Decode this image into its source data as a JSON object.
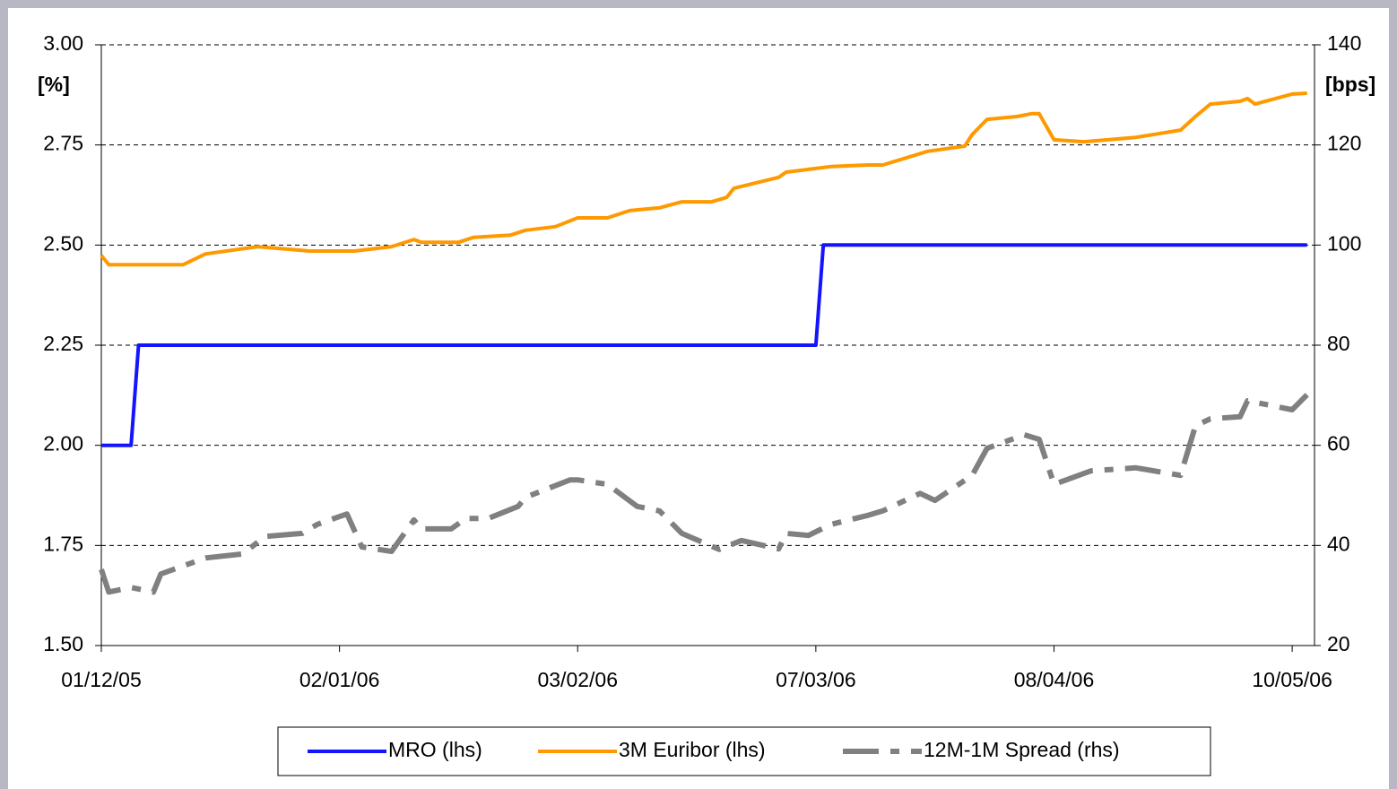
{
  "chart_data": {
    "type": "line",
    "y_label": "[%]",
    "y2_label": "[bps]",
    "xlim": [
      "01/12/05",
      "13/05/06"
    ],
    "xticks": [
      "01/12/05",
      "02/01/06",
      "03/02/06",
      "07/03/06",
      "08/04/06",
      "10/05/06"
    ],
    "ylim": [
      1.5,
      3.0
    ],
    "yticks": [
      {
        "value": 1.5,
        "label": "1.50"
      },
      {
        "value": 1.75,
        "label": "1.75"
      },
      {
        "value": 2.0,
        "label": "2.00"
      },
      {
        "value": 2.25,
        "label": "2.25"
      },
      {
        "value": 2.5,
        "label": "2.50"
      },
      {
        "value": 2.75,
        "label": "2.75"
      },
      {
        "value": 3.0,
        "label": "3.00"
      }
    ],
    "y2lim": [
      20,
      140
    ],
    "y2ticks": [
      20,
      40,
      60,
      80,
      100,
      120,
      140
    ],
    "grid": true,
    "legend": "bottom",
    "series": [
      {
        "name": "MRO (lhs)",
        "color": "#1414ff",
        "style": "solid",
        "x": [
          "01/12/05",
          "05/12/05",
          "06/12/05",
          "07/03/06",
          "08/03/06",
          "12/05/06"
        ],
        "values": [
          2.0,
          2.0,
          2.25,
          2.25,
          2.5,
          2.5
        ]
      },
      {
        "name": "3M Euribor (lhs)",
        "color": "#ff9900",
        "style": "solid",
        "x": [
          "01/12/05",
          "02/12/05",
          "12/12/05",
          "15/12/05",
          "22/12/05",
          "29/12/05",
          "04/01/06",
          "09/01/06",
          "12/01/06",
          "13/01/06",
          "18/01/06",
          "20/01/06",
          "25/01/06",
          "27/01/06",
          "31/01/06",
          "03/02/06",
          "07/02/06",
          "10/02/06",
          "14/02/06",
          "17/02/06",
          "21/02/06",
          "23/02/06",
          "24/02/06",
          "02/03/06",
          "03/03/06",
          "06/03/06",
          "09/03/06",
          "14/03/06",
          "16/03/06",
          "22/03/06",
          "27/03/06",
          "28/03/06",
          "30/03/06",
          "03/04/06",
          "05/04/06",
          "06/04/06",
          "08/04/06",
          "12/04/06",
          "19/04/06",
          "22/04/06",
          "25/04/06",
          "27/04/06",
          "29/04/06",
          "03/05/06",
          "04/05/06",
          "05/05/06",
          "10/05/06",
          "12/05/06"
        ],
        "values": [
          2.474,
          2.451,
          2.451,
          2.478,
          2.496,
          2.485,
          2.485,
          2.496,
          2.514,
          2.507,
          2.507,
          2.519,
          2.525,
          2.537,
          2.546,
          2.568,
          2.568,
          2.586,
          2.593,
          2.608,
          2.608,
          2.619,
          2.642,
          2.669,
          2.682,
          2.689,
          2.696,
          2.7,
          2.7,
          2.734,
          2.747,
          2.776,
          2.814,
          2.821,
          2.828,
          2.828,
          2.763,
          2.758,
          2.769,
          2.778,
          2.787,
          2.821,
          2.852,
          2.859,
          2.866,
          2.852,
          2.877,
          2.879
        ]
      },
      {
        "name": "12M-1M Spread (rhs)",
        "color": "#808080",
        "style": "dashed",
        "axis": "y2",
        "x": [
          "01/12/05",
          "02/12/05",
          "05/12/05",
          "08/12/05",
          "09/12/05",
          "15/12/05",
          "20/12/05",
          "23/12/05",
          "28/12/05",
          "30/12/05",
          "03/01/06",
          "05/01/06",
          "09/01/06",
          "12/01/06",
          "13/01/06",
          "17/01/06",
          "19/01/06",
          "22/01/06",
          "26/01/06",
          "27/01/06",
          "02/02/06",
          "03/02/06",
          "07/02/06",
          "11/02/06",
          "14/02/06",
          "17/02/06",
          "22/02/06",
          "25/02/06",
          "02/03/06",
          "03/03/06",
          "06/03/06",
          "09/03/06",
          "14/03/06",
          "16/03/06",
          "21/03/06",
          "23/03/06",
          "28/03/06",
          "30/03/06",
          "04/04/06",
          "06/04/06",
          "08/04/06",
          "13/04/06",
          "19/04/06",
          "25/04/06",
          "27/04/06",
          "29/04/06",
          "03/05/06",
          "04/05/06",
          "10/05/06",
          "12/05/06"
        ],
        "values": [
          35.2,
          30.7,
          31.6,
          30.7,
          34.3,
          37.5,
          38.3,
          41.8,
          42.4,
          44.2,
          46.3,
          39.7,
          38.8,
          45.1,
          43.3,
          43.3,
          45.4,
          45.4,
          47.8,
          49.6,
          53.1,
          53.1,
          52.2,
          47.8,
          46.9,
          42.4,
          39.2,
          41.0,
          39.3,
          42.4,
          42.0,
          44.2,
          46.0,
          46.9,
          50.4,
          49.0,
          54.0,
          59.4,
          62.1,
          61.2,
          52.2,
          54.9,
          55.5,
          54.0,
          63.9,
          65.3,
          65.7,
          68.9,
          67.1,
          70.1
        ]
      }
    ]
  }
}
